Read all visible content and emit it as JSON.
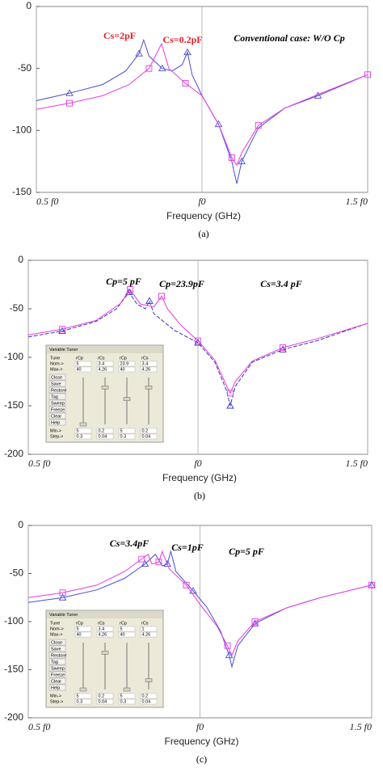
{
  "chart_data": [
    {
      "type": "line",
      "caption": "(a)",
      "xlabel": "Frequency (GHz)",
      "xlim": [
        0.5,
        1.5
      ],
      "xticks": [
        {
          "value": 0.5,
          "label": "0.5 f0"
        },
        {
          "value": 1,
          "label": "f0"
        },
        {
          "value": 1.5,
          "label": "1.5 f0"
        }
      ],
      "ylim": [
        -150,
        0
      ],
      "yticks": [
        0,
        -50,
        -100,
        -150
      ],
      "grid": "x",
      "annotations": [
        {
          "text": "Cs=2pF",
          "color": "#e0202a"
        },
        {
          "text": "Cs=0.2pF",
          "color": "#e0202a"
        },
        {
          "text": "Conventional case: W/O Cp",
          "color": "#000000"
        }
      ],
      "series": [
        {
          "color": "#4b4bd8",
          "marker": "triangle",
          "dash": false,
          "x": [
            0.5,
            0.6,
            0.7,
            0.77,
            0.81,
            0.824,
            0.84,
            0.88,
            0.91,
            0.94,
            0.956,
            0.97,
            1.0,
            1.05,
            1.09,
            1.105,
            1.12,
            1.17,
            1.25,
            1.35,
            1.5
          ],
          "values": [
            -76,
            -70,
            -63,
            -52,
            -38,
            -27,
            -40,
            -50,
            -52,
            -47,
            -37,
            -55,
            -72,
            -95,
            -125,
            -143,
            -125,
            -98,
            -82,
            -72,
            -55
          ]
        },
        {
          "color": "#e83ae0",
          "marker": "square",
          "dash": false,
          "x": [
            0.5,
            0.6,
            0.7,
            0.78,
            0.84,
            0.878,
            0.9,
            0.95,
            1.0,
            1.05,
            1.09,
            1.105,
            1.12,
            1.17,
            1.25,
            1.35,
            1.5
          ],
          "values": [
            -83,
            -78,
            -72,
            -63,
            -50,
            -30,
            -50,
            -62,
            -72,
            -95,
            -122,
            -128,
            -118,
            -96,
            -82,
            -71,
            -55
          ]
        }
      ]
    },
    {
      "type": "line",
      "caption": "(b)",
      "xlabel": "Frequency (GHz)",
      "xlim": [
        0.5,
        1.5
      ],
      "xticks": [
        {
          "value": 0.5,
          "label": "0.5 f0"
        },
        {
          "value": 1,
          "label": "f0"
        },
        {
          "value": 1.5,
          "label": "1.5 f0"
        }
      ],
      "ylim": [
        -200,
        0
      ],
      "yticks": [
        0,
        -50,
        -100,
        -150,
        -200
      ],
      "grid": "x",
      "annotations": [
        {
          "text": "Cp=5 pF",
          "color": "#000000"
        },
        {
          "text": "Cp=23.9pF",
          "color": "#000000"
        },
        {
          "text": "Cs=3.4 pF",
          "color": "#000000"
        }
      ],
      "series": [
        {
          "color": "#3434c8",
          "marker": "triangle",
          "dash": true,
          "x": [
            0.5,
            0.6,
            0.7,
            0.76,
            0.797,
            0.82,
            0.845,
            0.857,
            0.87,
            0.93,
            1.0,
            1.05,
            1.085,
            1.095,
            1.11,
            1.16,
            1.25,
            1.35,
            1.5
          ],
          "values": [
            -79,
            -73,
            -63,
            -50,
            -33,
            -45,
            -50,
            -42,
            -55,
            -72,
            -85,
            -105,
            -135,
            -150,
            -130,
            -105,
            -92,
            -83,
            -65
          ]
        },
        {
          "color": "#e83ae0",
          "marker": "square",
          "dash": false,
          "x": [
            0.5,
            0.6,
            0.7,
            0.77,
            0.8,
            0.83,
            0.87,
            0.893,
            0.91,
            0.95,
            1.0,
            1.05,
            1.085,
            1.095,
            1.11,
            1.16,
            1.25,
            1.35,
            1.5
          ],
          "values": [
            -77,
            -71,
            -62,
            -45,
            -30,
            -45,
            -48,
            -37,
            -50,
            -67,
            -83,
            -103,
            -130,
            -137,
            -125,
            -104,
            -90,
            -81,
            -65
          ]
        }
      ],
      "inset": {
        "title": "Variable Tuner",
        "tune_label": "Tune",
        "row_labels": [
          "Nom->",
          "Max->",
          "Min->",
          "Step->"
        ],
        "columns": [
          "rCp",
          "rCs",
          "rCp",
          "rCs"
        ],
        "nom": [
          5,
          3.4,
          23.9,
          3.4
        ],
        "max": [
          40,
          4.26,
          40,
          4.26
        ],
        "min": [
          5,
          0.2,
          5,
          0.2
        ],
        "step": [
          0.3,
          0.04,
          0.3,
          0.04
        ],
        "buttons": [
          "Close",
          "Save",
          "Restore",
          "Tag",
          "Sweep",
          "Freeze",
          "Clear",
          "Help"
        ]
      }
    },
    {
      "type": "line",
      "caption": "(c)",
      "xlabel": "Frequency (GHz)",
      "xlim": [
        0.5,
        1.5
      ],
      "xticks": [
        {
          "value": 0.5,
          "label": "0.5 f0"
        },
        {
          "value": 1,
          "label": "f0"
        },
        {
          "value": 1.5,
          "label": "1.5 f0"
        }
      ],
      "ylim": [
        -200,
        0
      ],
      "yticks": [
        0,
        -50,
        -100,
        -150,
        -200
      ],
      "grid": "x",
      "annotations": [
        {
          "text": "Cs=3.4pF",
          "color": "#000000"
        },
        {
          "text": "Cs=1pF",
          "color": "#000000"
        },
        {
          "text": "Cp=5 pF",
          "color": "#000000"
        }
      ],
      "series": [
        {
          "color": "#4b4bd8",
          "marker": "triangle",
          "dash": false,
          "x": [
            0.5,
            0.6,
            0.7,
            0.78,
            0.84,
            0.87,
            0.89,
            0.905,
            0.915,
            0.93,
            0.98,
            1.02,
            1.06,
            1.085,
            1.093,
            1.11,
            1.16,
            1.25,
            1.35,
            1.5
          ],
          "values": [
            -80,
            -75,
            -67,
            -55,
            -40,
            -30,
            -42,
            -40,
            -27,
            -48,
            -68,
            -85,
            -110,
            -135,
            -147,
            -125,
            -102,
            -86,
            -75,
            -62
          ]
        },
        {
          "color": "#e83ae0",
          "marker": "square",
          "dash": false,
          "x": [
            0.5,
            0.6,
            0.7,
            0.78,
            0.83,
            0.849,
            0.86,
            0.88,
            0.89,
            0.91,
            0.96,
            1.0,
            1.05,
            1.08,
            1.093,
            1.11,
            1.16,
            1.25,
            1.35,
            1.5
          ],
          "values": [
            -75,
            -70,
            -62,
            -48,
            -35,
            -30,
            -40,
            -38,
            -27,
            -45,
            -62,
            -82,
            -105,
            -125,
            -135,
            -120,
            -100,
            -86,
            -75,
            -62
          ]
        }
      ],
      "inset": {
        "title": "Variable Tuner",
        "tune_label": "Tune",
        "row_labels": [
          "Nom->",
          "Max->",
          "Min->",
          "Step->"
        ],
        "columns": [
          "rCp",
          "rCs",
          "rCp",
          "rCs"
        ],
        "nom": [
          5,
          3.4,
          5,
          1
        ],
        "max": [
          40,
          4.26,
          40,
          4.26
        ],
        "min": [
          5,
          0.2,
          5,
          0.2
        ],
        "step": [
          0.3,
          0.04,
          0.3,
          0.04
        ],
        "buttons": [
          "Close",
          "Save",
          "Restore",
          "Tag",
          "Sweep",
          "Freeze",
          "Clear",
          "Help"
        ]
      }
    }
  ]
}
